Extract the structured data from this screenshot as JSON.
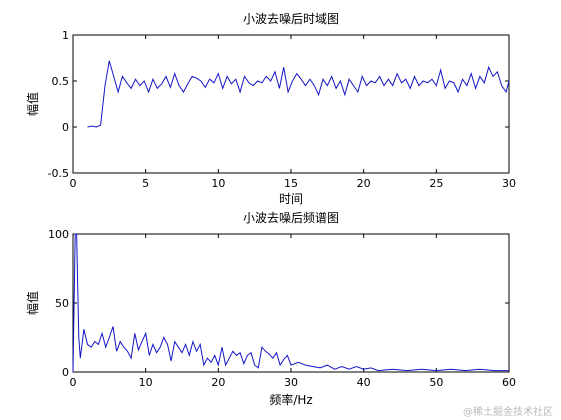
{
  "watermark": "@稀土掘金技术社区",
  "chart_data": [
    {
      "type": "line",
      "title": "小波去噪后时域图",
      "xlabel": "时间",
      "ylabel": "幅值",
      "xlim": [
        0,
        30
      ],
      "ylim": [
        -0.5,
        1
      ],
      "xticks": [
        0,
        5,
        10,
        15,
        20,
        25,
        30
      ],
      "yticks": [
        -0.5,
        0,
        0.5,
        1
      ],
      "grid": false,
      "series_color": "#1414c8",
      "series": [
        {
          "x": [
            1.0,
            1.3,
            1.6,
            1.9,
            2.2,
            2.5,
            2.8,
            3.1,
            3.4,
            3.7,
            4.0,
            4.3,
            4.6,
            4.9,
            5.2,
            5.5,
            5.8,
            6.1,
            6.4,
            6.7,
            7.0,
            7.3,
            7.6,
            7.9,
            8.2,
            8.5,
            8.8,
            9.1,
            9.4,
            9.7,
            10.0,
            10.3,
            10.6,
            10.9,
            11.2,
            11.5,
            11.8,
            12.1,
            12.4,
            12.7,
            13.0,
            13.3,
            13.6,
            13.9,
            14.2,
            14.5,
            14.8,
            15.1,
            15.4,
            15.7,
            16.0,
            16.3,
            16.6,
            16.9,
            17.2,
            17.5,
            17.8,
            18.1,
            18.4,
            18.7,
            19.0,
            19.3,
            19.6,
            19.9,
            20.2,
            20.5,
            20.8,
            21.1,
            21.4,
            21.7,
            22.0,
            22.3,
            22.6,
            22.9,
            23.2,
            23.5,
            23.8,
            24.1,
            24.4,
            24.7,
            25.0,
            25.3,
            25.6,
            25.9,
            26.2,
            26.5,
            26.8,
            27.1,
            27.4,
            27.7,
            28.0,
            28.3,
            28.6,
            28.9,
            29.2,
            29.5,
            29.8,
            30.0
          ],
          "values": [
            0.0,
            0.01,
            0.0,
            0.02,
            0.45,
            0.72,
            0.55,
            0.38,
            0.55,
            0.48,
            0.42,
            0.52,
            0.45,
            0.5,
            0.38,
            0.52,
            0.42,
            0.47,
            0.55,
            0.43,
            0.58,
            0.45,
            0.38,
            0.47,
            0.55,
            0.53,
            0.5,
            0.43,
            0.52,
            0.48,
            0.58,
            0.42,
            0.55,
            0.47,
            0.52,
            0.38,
            0.55,
            0.48,
            0.45,
            0.5,
            0.48,
            0.55,
            0.5,
            0.6,
            0.42,
            0.65,
            0.38,
            0.5,
            0.58,
            0.52,
            0.45,
            0.52,
            0.45,
            0.35,
            0.52,
            0.45,
            0.55,
            0.42,
            0.5,
            0.35,
            0.52,
            0.45,
            0.38,
            0.55,
            0.45,
            0.5,
            0.48,
            0.55,
            0.45,
            0.52,
            0.45,
            0.58,
            0.48,
            0.52,
            0.42,
            0.55,
            0.45,
            0.5,
            0.48,
            0.52,
            0.45,
            0.62,
            0.42,
            0.5,
            0.48,
            0.38,
            0.52,
            0.45,
            0.58,
            0.42,
            0.55,
            0.48,
            0.65,
            0.55,
            0.6,
            0.45,
            0.38,
            0.5
          ]
        }
      ]
    },
    {
      "type": "line",
      "title": "小波去噪后频谱图",
      "xlabel": "频率/Hz",
      "ylabel": "幅值",
      "xlim": [
        0,
        60
      ],
      "ylim": [
        0,
        100
      ],
      "xticks": [
        0,
        10,
        20,
        30,
        40,
        50,
        60
      ],
      "yticks": [
        0,
        50,
        100
      ],
      "grid": false,
      "series_color": "#1414c8",
      "series": [
        {
          "x": [
            0.0,
            0.3,
            0.5,
            0.8,
            1.0,
            1.5,
            2.0,
            2.5,
            3.0,
            3.5,
            4.0,
            4.5,
            5.0,
            5.5,
            6.0,
            6.5,
            7.0,
            7.5,
            8.0,
            8.5,
            9.0,
            9.5,
            10.0,
            10.5,
            11.0,
            11.5,
            12.0,
            12.5,
            13.0,
            13.5,
            14.0,
            14.5,
            15.0,
            15.5,
            16.0,
            16.5,
            17.0,
            17.5,
            18.0,
            18.5,
            19.0,
            19.5,
            20.0,
            20.5,
            21.0,
            21.5,
            22.0,
            22.5,
            23.0,
            23.5,
            24.0,
            24.5,
            25.0,
            25.5,
            26.0,
            26.5,
            27.0,
            27.5,
            28.0,
            28.5,
            29.0,
            29.5,
            30.0,
            31.0,
            32.0,
            33.0,
            34.0,
            35.0,
            36.0,
            37.0,
            38.0,
            39.0,
            40.0,
            41.0,
            42.0,
            44.0,
            46.0,
            48.0,
            50.0,
            52.0,
            54.0,
            56.0,
            58.0,
            60.0
          ],
          "values": [
            0,
            100,
            100,
            25,
            10,
            31,
            20,
            18,
            22,
            20,
            28,
            18,
            25,
            33,
            15,
            22,
            18,
            15,
            10,
            28,
            16,
            22,
            28,
            12,
            20,
            14,
            18,
            25,
            20,
            8,
            22,
            18,
            14,
            20,
            12,
            22,
            15,
            20,
            5,
            10,
            7,
            12,
            5,
            18,
            5,
            10,
            15,
            12,
            14,
            6,
            12,
            14,
            5,
            3,
            18,
            15,
            13,
            10,
            14,
            5,
            9,
            12,
            5,
            7,
            5,
            4,
            3,
            5,
            2,
            4,
            2,
            4,
            2,
            3,
            1,
            2,
            1,
            2,
            1,
            2,
            1,
            2,
            1,
            1
          ]
        }
      ]
    }
  ]
}
